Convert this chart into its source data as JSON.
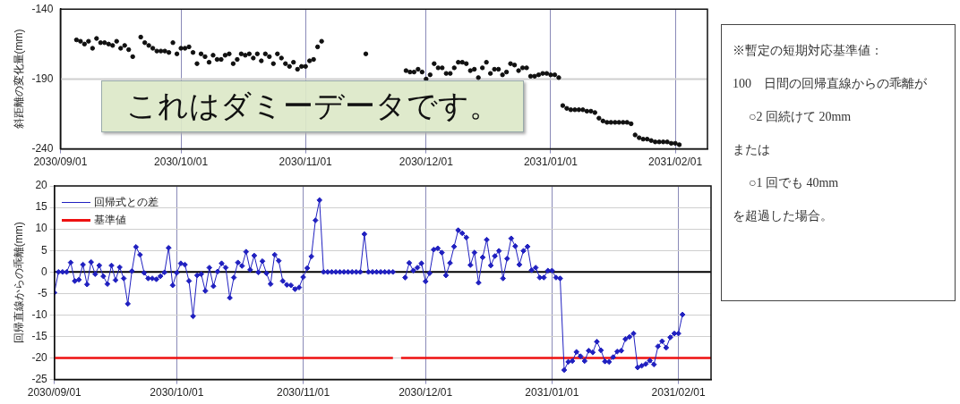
{
  "chart_data": [
    {
      "type": "scatter",
      "ylabel": "斜距離の変化量(mm)",
      "annotations": [
        "これはダミーデータです。"
      ],
      "marker": "circle",
      "grid": "x",
      "ref_lines": [
        {
          "axis": "y",
          "value": -190,
          "color": "#cfcfcf"
        }
      ],
      "xlim": [
        "2030-09-01",
        "2031-02-09"
      ],
      "xticks": [
        {
          "value": "2030-09-01",
          "label": "2030/09/01"
        },
        {
          "value": "2030-10-01",
          "label": "2030/10/01"
        },
        {
          "value": "2030-11-01",
          "label": "2030/11/01"
        },
        {
          "value": "2030-12-01",
          "label": "2030/12/01"
        },
        {
          "value": "2031-01-01",
          "label": "2031/01/01"
        },
        {
          "value": "2031-02-01",
          "label": "2031/02/01"
        }
      ],
      "ylim": [
        -240,
        -140
      ],
      "yticks": [
        -240,
        -190,
        -140
      ],
      "x": [
        "2030-09-05",
        "2030-09-06",
        "2030-09-07",
        "2030-09-08",
        "2030-09-09",
        "2030-09-10",
        "2030-09-11",
        "2030-09-12",
        "2030-09-13",
        "2030-09-14",
        "2030-09-15",
        "2030-09-16",
        "2030-09-17",
        "2030-09-18",
        "2030-09-19",
        "2030-09-21",
        "2030-09-22",
        "2030-09-23",
        "2030-09-24",
        "2030-09-25",
        "2030-09-26",
        "2030-09-27",
        "2030-09-28",
        "2030-09-29",
        "2030-09-30",
        "2030-10-01",
        "2030-10-02",
        "2030-10-03",
        "2030-10-04",
        "2030-10-05",
        "2030-10-06",
        "2030-10-07",
        "2030-10-08",
        "2030-10-09",
        "2030-10-10",
        "2030-10-11",
        "2030-10-12",
        "2030-10-13",
        "2030-10-14",
        "2030-10-15",
        "2030-10-16",
        "2030-10-17",
        "2030-10-18",
        "2030-10-19",
        "2030-10-20",
        "2030-10-21",
        "2030-10-22",
        "2030-10-23",
        "2030-10-24",
        "2030-10-25",
        "2030-10-26",
        "2030-10-27",
        "2030-10-28",
        "2030-10-29",
        "2030-10-30",
        "2030-10-31",
        "2030-11-01",
        "2030-11-02",
        "2030-11-03",
        "2030-11-04",
        "2030-11-05",
        "2030-11-16",
        "2030-11-26",
        "2030-11-27",
        "2030-11-28",
        "2030-11-29",
        "2030-11-30",
        "2030-12-01",
        "2030-12-02",
        "2030-12-03",
        "2030-12-04",
        "2030-12-05",
        "2030-12-06",
        "2030-12-07",
        "2030-12-08",
        "2030-12-09",
        "2030-12-10",
        "2030-12-11",
        "2030-12-12",
        "2030-12-13",
        "2030-12-14",
        "2030-12-15",
        "2030-12-16",
        "2030-12-17",
        "2030-12-18",
        "2030-12-19",
        "2030-12-20",
        "2030-12-21",
        "2030-12-22",
        "2030-12-23",
        "2030-12-24",
        "2030-12-25",
        "2030-12-26",
        "2030-12-27",
        "2030-12-28",
        "2030-12-29",
        "2030-12-30",
        "2030-12-31",
        "2031-01-01",
        "2031-01-02",
        "2031-01-03",
        "2031-01-04",
        "2031-01-05",
        "2031-01-06",
        "2031-01-07",
        "2031-01-08",
        "2031-01-09",
        "2031-01-10",
        "2031-01-11",
        "2031-01-12",
        "2031-01-13",
        "2031-01-14",
        "2031-01-15",
        "2031-01-16",
        "2031-01-17",
        "2031-01-18",
        "2031-01-19",
        "2031-01-20",
        "2031-01-21",
        "2031-01-22",
        "2031-01-23",
        "2031-01-24",
        "2031-01-25",
        "2031-01-26",
        "2031-01-27",
        "2031-01-28",
        "2031-01-29",
        "2031-01-30",
        "2031-01-31",
        "2031-02-01",
        "2031-02-02"
      ],
      "series": [
        {
          "color": "#111111",
          "values": [
            -162,
            -163,
            -165,
            -163,
            -168,
            -161,
            -164,
            -164,
            -165,
            -166,
            -163,
            -168,
            -166,
            -169,
            -174,
            -160,
            -164,
            -166,
            -168,
            -170,
            -170,
            -170,
            -171,
            -164,
            -172,
            -168,
            -168,
            -167,
            -171,
            -179,
            -172,
            -174,
            -178,
            -173,
            -176,
            -176,
            -173,
            -172,
            -179,
            -176,
            -172,
            -173,
            -172,
            -175,
            -172,
            -177,
            -172,
            -174,
            -179,
            -172,
            -175,
            -179,
            -181,
            -178,
            -183,
            -181,
            -181,
            -177,
            -176,
            -167,
            -163,
            -172,
            -184,
            -185,
            -185,
            -183,
            -185,
            -190,
            -187,
            -179,
            -182,
            -182,
            -186,
            -186,
            -182,
            -178,
            -178,
            -179,
            -184,
            -183,
            -189,
            -182,
            -178,
            -186,
            -183,
            -183,
            -187,
            -185,
            -179,
            -180,
            -184,
            -182,
            -182,
            -188,
            -188,
            -187,
            -186,
            -186,
            -187,
            -187,
            -189,
            -209,
            -211,
            -212,
            -212,
            -212,
            -212,
            -213,
            -213,
            -214,
            -218,
            -220,
            -221,
            -221,
            -221,
            -221,
            -221,
            -221,
            -222,
            -230,
            -232,
            -233,
            -233,
            -234,
            -235,
            -235,
            -235,
            -235,
            -236,
            -236,
            -237
          ]
        }
      ]
    },
    {
      "type": "line",
      "ylabel": "回帰直線からの乖離(mm)",
      "grid": true,
      "legend": "top left",
      "line_style": "solid",
      "xlim": [
        "2030-09-01",
        "2031-02-09"
      ],
      "xticks": [
        {
          "value": "2030-09-01",
          "label": "2030/09/01"
        },
        {
          "value": "2030-10-01",
          "label": "2030/10/01"
        },
        {
          "value": "2030-11-01",
          "label": "2030/11/01"
        },
        {
          "value": "2030-12-01",
          "label": "2030/12/01"
        },
        {
          "value": "2031-01-01",
          "label": "2031/01/01"
        },
        {
          "value": "2031-02-01",
          "label": "2031/02/01"
        }
      ],
      "ylim": [
        -25,
        20
      ],
      "yticks": [
        -25,
        -20,
        -15,
        -10,
        -5,
        0,
        5,
        10,
        15,
        20
      ],
      "ref_lines": [
        {
          "axis": "y",
          "value": 0,
          "color": "#000000"
        }
      ],
      "x": [
        "2030-09-01",
        "2030-09-02",
        "2030-09-03",
        "2030-09-04",
        "2030-09-05",
        "2030-09-06",
        "2030-09-07",
        "2030-09-08",
        "2030-09-09",
        "2030-09-10",
        "2030-09-11",
        "2030-09-12",
        "2030-09-13",
        "2030-09-14",
        "2030-09-15",
        "2030-09-16",
        "2030-09-17",
        "2030-09-18",
        "2030-09-19",
        "2030-09-20",
        "2030-09-21",
        "2030-09-22",
        "2030-09-23",
        "2030-09-24",
        "2030-09-25",
        "2030-09-26",
        "2030-09-27",
        "2030-09-28",
        "2030-09-29",
        "2030-09-30",
        "2030-10-01",
        "2030-10-02",
        "2030-10-03",
        "2030-10-04",
        "2030-10-05",
        "2030-10-06",
        "2030-10-07",
        "2030-10-08",
        "2030-10-09",
        "2030-10-10",
        "2030-10-11",
        "2030-10-12",
        "2030-10-13",
        "2030-10-14",
        "2030-10-15",
        "2030-10-16",
        "2030-10-17",
        "2030-10-18",
        "2030-10-19",
        "2030-10-20",
        "2030-10-21",
        "2030-10-22",
        "2030-10-23",
        "2030-10-24",
        "2030-10-25",
        "2030-10-26",
        "2030-10-27",
        "2030-10-28",
        "2030-10-29",
        "2030-10-30",
        "2030-10-31",
        "2030-11-01",
        "2030-11-02",
        "2030-11-03",
        "2030-11-04",
        "2030-11-05",
        "2030-11-06",
        "2030-11-07",
        "2030-11-08",
        "2030-11-09",
        "2030-11-10",
        "2030-11-11",
        "2030-11-12",
        "2030-11-13",
        "2030-11-14",
        "2030-11-15",
        "2030-11-16",
        "2030-11-17",
        "2030-11-18",
        "2030-11-19",
        "2030-11-20",
        "2030-11-21",
        "2030-11-22",
        "2030-11-23",
        "2030-11-24",
        "2030-11-25",
        "2030-11-26",
        "2030-11-27",
        "2030-11-28",
        "2030-11-29",
        "2030-11-30",
        "2030-12-01",
        "2030-12-02",
        "2030-12-03",
        "2030-12-04",
        "2030-12-05",
        "2030-12-06",
        "2030-12-07",
        "2030-12-08",
        "2030-12-09",
        "2030-12-10",
        "2030-12-11",
        "2030-12-12",
        "2030-12-13",
        "2030-12-14",
        "2030-12-15",
        "2030-12-16",
        "2030-12-17",
        "2030-12-18",
        "2030-12-19",
        "2030-12-20",
        "2030-12-21",
        "2030-12-22",
        "2030-12-23",
        "2030-12-24",
        "2030-12-25",
        "2030-12-26",
        "2030-12-27",
        "2030-12-28",
        "2030-12-29",
        "2030-12-30",
        "2030-12-31",
        "2031-01-01",
        "2031-01-02",
        "2031-01-03",
        "2031-01-04",
        "2031-01-05",
        "2031-01-06",
        "2031-01-07",
        "2031-01-08",
        "2031-01-09",
        "2031-01-10",
        "2031-01-11",
        "2031-01-12",
        "2031-01-13",
        "2031-01-14",
        "2031-01-15",
        "2031-01-16",
        "2031-01-17",
        "2031-01-18",
        "2031-01-19",
        "2031-01-20",
        "2031-01-21",
        "2031-01-22",
        "2031-01-23",
        "2031-01-24",
        "2031-01-25",
        "2031-01-26",
        "2031-01-27",
        "2031-01-28",
        "2031-01-29",
        "2031-01-30",
        "2031-01-31",
        "2031-02-01",
        "2031-02-02"
      ],
      "series": [
        {
          "name": "回帰式との差",
          "color": "#2020c0",
          "marker": "diamond",
          "values": [
            -4.8,
            0,
            0,
            0,
            2.2,
            -2.1,
            -1.8,
            1.7,
            -2.9,
            2.3,
            -0.5,
            1.5,
            -1,
            -2.8,
            1.5,
            -1.9,
            1.1,
            -1.5,
            -7.4,
            0.2,
            5.8,
            4,
            -0.2,
            -1.5,
            -1.5,
            -1.7,
            -1,
            -0.1,
            5.6,
            -3.1,
            -0.2,
            2,
            1.7,
            -2.1,
            -10.3,
            -0.8,
            -0.5,
            -4.4,
            1,
            -3.3,
            0.1,
            2,
            1,
            -6,
            -1.3,
            2.2,
            1.4,
            4.7,
            0.5,
            3.8,
            -0.1,
            2.5,
            -0.3,
            -2.8,
            4,
            2.6,
            -2.1,
            -3,
            -3.1,
            -4,
            -3.6,
            -1.2,
            0.9,
            3.6,
            12,
            16.7,
            0,
            0,
            0,
            0,
            0,
            0,
            0,
            0,
            0,
            0,
            8.8,
            0,
            0,
            0,
            0,
            0,
            0,
            0,
            null,
            null,
            -1.3,
            2.1,
            0.3,
            1,
            2,
            -2.2,
            -0.3,
            5.2,
            5.5,
            4.5,
            -0.8,
            2.1,
            5.9,
            9.7,
            9,
            8,
            1.6,
            4.5,
            -2.5,
            3.4,
            7.5,
            1.5,
            3.7,
            4.9,
            -1.5,
            3.1,
            7.8,
            6,
            1.7,
            4.9,
            5.9,
            0.4,
            1,
            -1.3,
            -1.3,
            0.3,
            0.3,
            -1.3,
            -1.5,
            -22.8,
            -20.9,
            -20.7,
            -18.6,
            -19.6,
            -20.7,
            -18.3,
            -18.7,
            -16.2,
            -18.2,
            -20.8,
            -20.9,
            -19.8,
            -18.5,
            -18.3,
            -15.6,
            -15.1,
            -14.3,
            -22.2,
            -21.8,
            -21.4,
            -20.6,
            -21.5,
            -17.3,
            -16.1,
            -17.6,
            -15.2,
            -14.3,
            -14.3,
            -9.9
          ]
        },
        {
          "name": "基準値",
          "color": "#ee1111",
          "marker": "none",
          "x": [
            "2030-09-01",
            "2030-11-23",
            "2030-11-24",
            "2030-11-25",
            "2031-02-09"
          ],
          "values": [
            -20,
            -20,
            null,
            -20,
            -20
          ]
        }
      ]
    },
    {
      "type": "other",
      "annotations": [
        "※暫定の短期対応基準値：",
        "100　日間の回帰直線からの乖離が",
        "○2 回続けて 20mm",
        "または",
        "○1 回でも 40mm",
        "を超過した場合。"
      ]
    }
  ]
}
